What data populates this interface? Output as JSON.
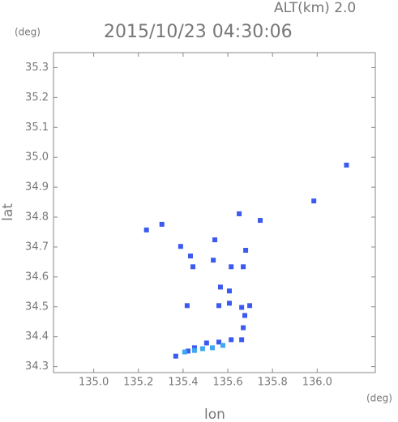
{
  "chart_data": {
    "type": "scatter",
    "title": "2015/10/23 04:30:06",
    "altitude_label": "ALT(km)  2.0",
    "y_unit": "(deg)",
    "x_unit": "(deg)",
    "y_label": "lat",
    "x_label": "lon",
    "xlim": [
      134.82,
      136.26
    ],
    "ylim": [
      34.28,
      35.35
    ],
    "xticks": [
      {
        "value": 135,
        "label": "135.0"
      },
      135.2,
      135.4,
      135.6,
      135.8,
      {
        "value": 136,
        "label": "136.0"
      }
    ],
    "yticks": [
      34.3,
      34.4,
      34.5,
      34.6,
      34.7,
      34.8,
      34.9,
      {
        "value": 35,
        "label": "35.0"
      },
      35.1,
      35.2,
      35.3
    ],
    "series": [
      {
        "color": "#3c5af0",
        "x": [
          135.236,
          135.305,
          135.389,
          135.433,
          135.444,
          135.418,
          135.542,
          135.535,
          135.615,
          135.651,
          135.68,
          135.669,
          135.567,
          135.607,
          135.56,
          135.607,
          135.662,
          135.698,
          135.676,
          135.669,
          135.662,
          135.615,
          135.56,
          135.505,
          135.451,
          135.422,
          135.367,
          135.985,
          136.131,
          135.745
        ],
        "values": [
          34.757,
          34.776,
          34.702,
          34.67,
          34.634,
          34.504,
          34.724,
          34.656,
          34.634,
          34.811,
          34.689,
          34.634,
          34.566,
          34.553,
          34.504,
          34.512,
          34.498,
          34.504,
          34.471,
          34.43,
          34.39,
          34.39,
          34.382,
          34.379,
          34.363,
          34.352,
          34.335,
          34.854,
          34.974,
          34.789
        ]
      },
      {
        "color": "#40a8f0",
        "x": [
          135.407,
          135.451,
          135.487,
          135.531,
          135.578
        ],
        "values": [
          34.349,
          34.354,
          34.36,
          34.363,
          34.371
        ]
      }
    ]
  }
}
